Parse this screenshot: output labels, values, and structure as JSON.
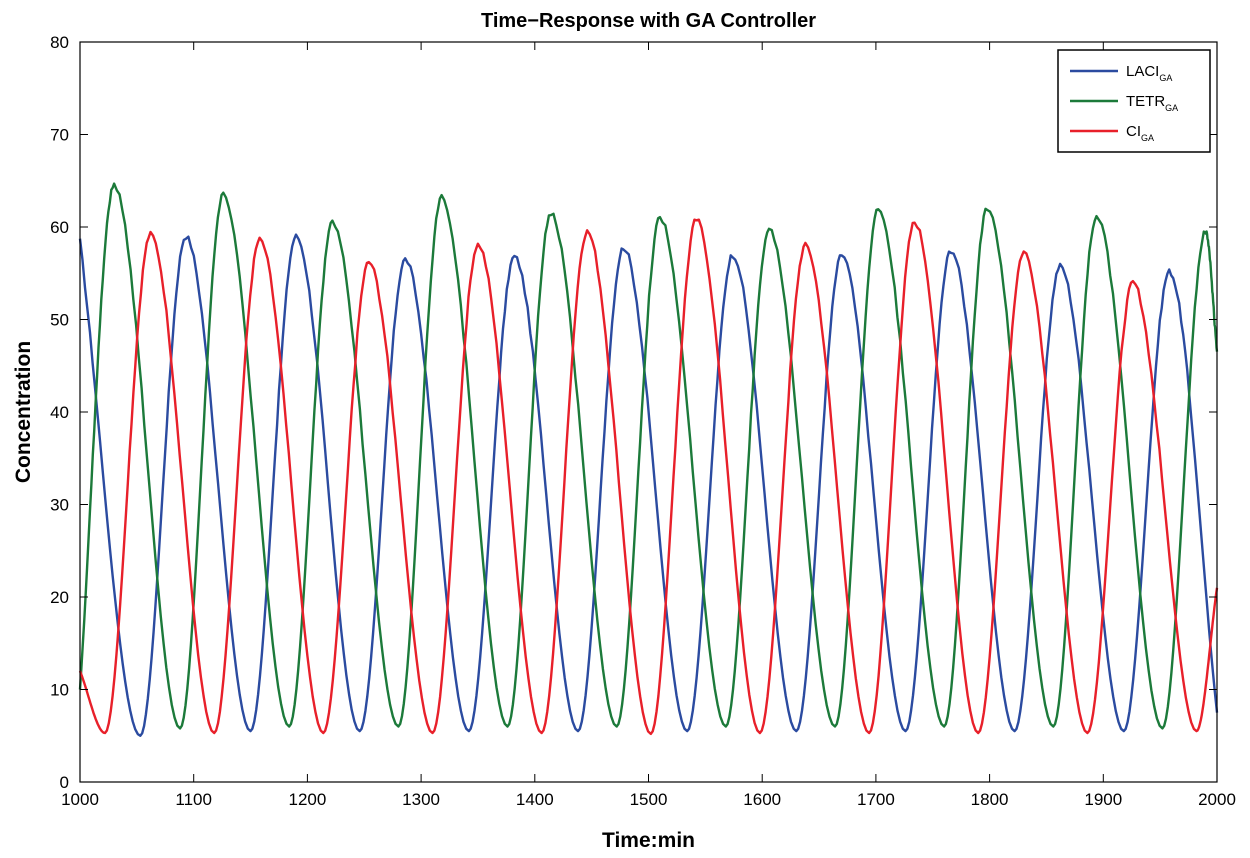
{
  "chart_data": {
    "type": "line",
    "title": "Time−Response with GA Controller",
    "xlabel": "Time:min",
    "ylabel": "Concentration",
    "xlim": [
      1000,
      2000
    ],
    "ylim": [
      0,
      80
    ],
    "xticks": [
      1000,
      1100,
      1200,
      1300,
      1400,
      1500,
      1600,
      1700,
      1800,
      1900,
      2000
    ],
    "yticks": [
      0,
      10,
      20,
      30,
      40,
      50,
      60,
      70,
      80
    ],
    "grid": false,
    "legend_position": "top-right",
    "oscillation_period": 96,
    "series": [
      {
        "name": "LACI",
        "name_sub": "GA",
        "color": "#2b4ba0",
        "start": [
          1000,
          58.5
        ],
        "end": [
          2000,
          7.5
        ],
        "peaks": [
          [
            1093,
            59
          ],
          [
            1190,
            59
          ],
          [
            1286,
            56.5
          ],
          [
            1382,
            56.8
          ],
          [
            1478,
            57.8
          ],
          [
            1574,
            57
          ],
          [
            1670,
            57
          ],
          [
            1766,
            57.5
          ],
          [
            1862,
            55.8
          ],
          [
            1958,
            55.2
          ]
        ],
        "troughs": [
          [
            1053,
            5
          ],
          [
            1150,
            5.5
          ],
          [
            1246,
            5.5
          ],
          [
            1342,
            5.5
          ],
          [
            1438,
            5.5
          ],
          [
            1534,
            5.5
          ],
          [
            1630,
            5.5
          ],
          [
            1726,
            5.5
          ],
          [
            1822,
            5.5
          ],
          [
            1918,
            5.5
          ]
        ]
      },
      {
        "name": "TETR",
        "name_sub": "GA",
        "color": "#1c7a3a",
        "start": [
          1000,
          10
        ],
        "end": [
          2000,
          46.5
        ],
        "peaks": [
          [
            1030,
            64.5
          ],
          [
            1126,
            63.5
          ],
          [
            1222,
            60.5
          ],
          [
            1318,
            63.2
          ],
          [
            1414,
            61.5
          ],
          [
            1510,
            61
          ],
          [
            1606,
            59.8
          ],
          [
            1702,
            62
          ],
          [
            1798,
            62
          ],
          [
            1894,
            61.2
          ],
          [
            1990,
            59.5
          ]
        ],
        "troughs": [
          [
            1088,
            5.8
          ],
          [
            1184,
            6
          ],
          [
            1280,
            6
          ],
          [
            1376,
            6
          ],
          [
            1472,
            6
          ],
          [
            1568,
            6
          ],
          [
            1664,
            6
          ],
          [
            1760,
            6
          ],
          [
            1856,
            6
          ],
          [
            1952,
            5.8
          ]
        ]
      },
      {
        "name": "CI",
        "name_sub": "GA",
        "color": "#e8202a",
        "start": [
          1000,
          12
        ],
        "end": [
          2000,
          21
        ],
        "peaks": [
          [
            1062,
            59.2
          ],
          [
            1158,
            58.6
          ],
          [
            1254,
            56.2
          ],
          [
            1350,
            58.1
          ],
          [
            1446,
            59.5
          ],
          [
            1542,
            60.8
          ],
          [
            1638,
            58
          ],
          [
            1734,
            60.5
          ],
          [
            1830,
            57.3
          ],
          [
            1926,
            54
          ]
        ],
        "troughs": [
          [
            1022,
            5.3
          ],
          [
            1118,
            5.3
          ],
          [
            1214,
            5.3
          ],
          [
            1310,
            5.3
          ],
          [
            1406,
            5.3
          ],
          [
            1502,
            5.2
          ],
          [
            1598,
            5.3
          ],
          [
            1694,
            5.3
          ],
          [
            1790,
            5.3
          ],
          [
            1886,
            5.3
          ],
          [
            1982,
            5.5
          ]
        ]
      }
    ]
  }
}
